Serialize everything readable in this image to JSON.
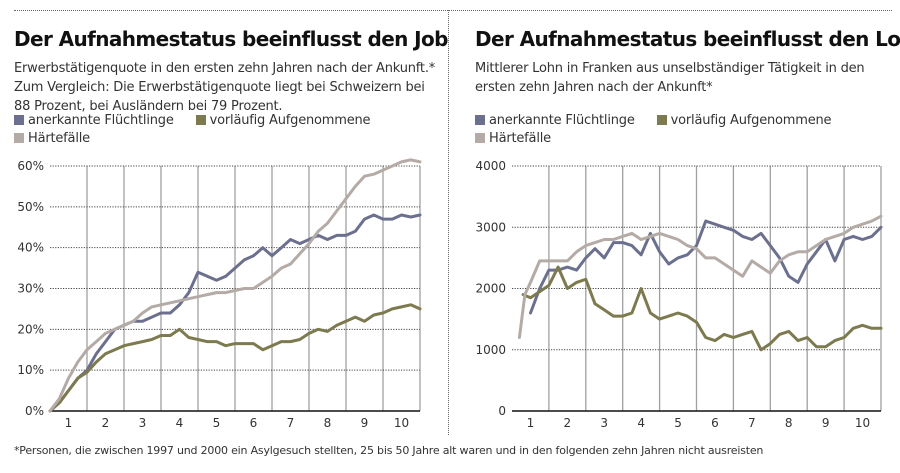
{
  "colors": {
    "anerkannt": "#6c708f",
    "vorlaeufig": "#7c7a4e",
    "haertefaelle": "#b4aba6"
  },
  "legend": [
    {
      "key": "anerkannt",
      "label": "anerkannte Flüchtlinge"
    },
    {
      "key": "vorlaeufig",
      "label": "vorläufig Aufgenommene"
    },
    {
      "key": "haertefaelle",
      "label": "Härtefälle"
    }
  ],
  "footnote": "*Personen, die zwischen 1997 und 2000 ein Asylgesuch stellten, 25 bis 50 Jahre alt waren und in den folgenden zehn Jahren nicht ausreisten",
  "chart_data": [
    {
      "type": "line",
      "title": "Der Aufnahmestatus beeinflusst den Job",
      "subtitle": "Erwerbstätigenquote in den ersten zehn Jahren nach der Ankunft.* Zum Vergleich: Die Erwerbstätigenquote liegt bei Schweizern bei 88 Prozent, bei Ausländern bei 79 Prozent.",
      "xlim": [
        0,
        10
      ],
      "ylim": [
        0,
        60
      ],
      "x_tick_labels": [
        "1",
        "2",
        "3",
        "4",
        "5",
        "6",
        "7",
        "8",
        "9",
        "10"
      ],
      "y_ticks": [
        0,
        10,
        20,
        30,
        40,
        50,
        60
      ],
      "y_tick_labels": [
        "0%",
        "10%",
        "20%",
        "30%",
        "40%",
        "50%",
        "60%"
      ],
      "grid": true,
      "legend_placement": "top",
      "series": [
        {
          "name": "anerkannte Flüchtlinge",
          "key": "anerkannt",
          "x": [
            0,
            0.25,
            0.5,
            0.75,
            1,
            1.25,
            1.5,
            1.75,
            2,
            2.25,
            2.5,
            2.75,
            3,
            3.25,
            3.5,
            3.75,
            4,
            4.25,
            4.5,
            4.75,
            5,
            5.25,
            5.5,
            5.75,
            6,
            6.25,
            6.5,
            6.75,
            7,
            7.25,
            7.5,
            7.75,
            8,
            8.25,
            8.5,
            8.75,
            9,
            9.25,
            9.5,
            9.75,
            10
          ],
          "y": [
            0,
            2,
            5,
            8,
            10,
            14,
            17,
            20,
            21,
            22,
            22,
            23,
            24,
            24,
            26,
            29,
            34,
            33,
            32,
            33,
            35,
            37,
            38,
            40,
            38,
            40,
            42,
            41,
            42,
            43,
            42,
            43,
            43,
            44,
            47,
            48,
            47,
            47,
            48,
            47.5,
            48
          ]
        },
        {
          "name": "vorläufig Aufgenommene",
          "key": "vorlaeufig",
          "x": [
            0,
            0.25,
            0.5,
            0.75,
            1,
            1.25,
            1.5,
            1.75,
            2,
            2.25,
            2.5,
            2.75,
            3,
            3.25,
            3.5,
            3.75,
            4,
            4.25,
            4.5,
            4.75,
            5,
            5.25,
            5.5,
            5.75,
            6,
            6.25,
            6.5,
            6.75,
            7,
            7.25,
            7.5,
            7.75,
            8,
            8.25,
            8.5,
            8.75,
            9,
            9.25,
            9.5,
            9.75,
            10
          ],
          "y": [
            0,
            2,
            5,
            8,
            9.5,
            12,
            14,
            15,
            16,
            16.5,
            17,
            17.5,
            18.5,
            18.5,
            20,
            18,
            17.5,
            17,
            17,
            16,
            16.5,
            16.5,
            16.5,
            15,
            16,
            17,
            17,
            17.5,
            19,
            20,
            19.5,
            21,
            22,
            23,
            22,
            23.5,
            24,
            25,
            25.5,
            26,
            25
          ]
        },
        {
          "name": "Härtefälle",
          "key": "haertefaelle",
          "x": [
            0,
            0.25,
            0.5,
            0.75,
            1,
            1.25,
            1.5,
            1.75,
            2,
            2.25,
            2.5,
            2.75,
            3,
            3.25,
            3.5,
            3.75,
            4,
            4.25,
            4.5,
            4.75,
            5,
            5.25,
            5.5,
            5.75,
            6,
            6.25,
            6.5,
            6.75,
            7,
            7.25,
            7.5,
            7.75,
            8,
            8.25,
            8.5,
            8.75,
            9,
            9.25,
            9.5,
            9.75,
            10
          ],
          "y": [
            0,
            3,
            8,
            12,
            15,
            17,
            19,
            20,
            21,
            22,
            24,
            25.5,
            26,
            26.5,
            27,
            27.5,
            28,
            28.5,
            29,
            29,
            29.5,
            30,
            30,
            31.5,
            33,
            35,
            36,
            38.5,
            41,
            44,
            46,
            49,
            52,
            55,
            57.5,
            58,
            59,
            60,
            61,
            61.5,
            61
          ]
        }
      ]
    },
    {
      "type": "line",
      "title": "Der Aufnahmestatus beeinflusst den Lohn",
      "subtitle": "Mittlerer Lohn in Franken aus unselbständiger Tätigkeit in den ersten zehn Jahren nach der Ankunft*",
      "xlim": [
        0,
        10
      ],
      "ylim": [
        0,
        4000
      ],
      "x_tick_labels": [
        "1",
        "2",
        "3",
        "4",
        "5",
        "6",
        "7",
        "8",
        "9",
        "10"
      ],
      "y_ticks": [
        0,
        1000,
        2000,
        3000,
        4000
      ],
      "y_tick_labels": [
        "0",
        "1000",
        "2000",
        "3000",
        "4000"
      ],
      "grid": true,
      "legend_placement": "top",
      "series": [
        {
          "name": "anerkannte Flüchtlinge",
          "key": "anerkannt",
          "x": [
            0.5,
            0.75,
            1,
            1.25,
            1.5,
            1.75,
            2,
            2.25,
            2.5,
            2.75,
            3,
            3.25,
            3.5,
            3.75,
            4,
            4.25,
            4.5,
            4.75,
            5,
            5.25,
            5.5,
            5.75,
            6,
            6.25,
            6.5,
            6.75,
            7,
            7.25,
            7.5,
            7.75,
            8,
            8.25,
            8.5,
            8.75,
            9,
            9.25,
            9.5,
            9.75,
            10
          ],
          "y": [
            1600,
            2000,
            2300,
            2300,
            2350,
            2300,
            2500,
            2650,
            2500,
            2750,
            2750,
            2700,
            2550,
            2900,
            2600,
            2400,
            2500,
            2550,
            2700,
            3100,
            3050,
            3000,
            2950,
            2850,
            2800,
            2900,
            2700,
            2500,
            2200,
            2100,
            2400,
            2600,
            2800,
            2450,
            2800,
            2850,
            2800,
            2850,
            3000
          ]
        },
        {
          "name": "vorläufig Aufgenommene",
          "key": "vorlaeufig",
          "x": [
            0.3,
            0.5,
            0.75,
            1,
            1.25,
            1.5,
            1.75,
            2,
            2.25,
            2.5,
            2.75,
            3,
            3.25,
            3.5,
            3.75,
            4,
            4.25,
            4.5,
            4.75,
            5,
            5.25,
            5.5,
            5.75,
            6,
            6.25,
            6.5,
            6.75,
            7,
            7.25,
            7.5,
            7.75,
            8,
            8.25,
            8.5,
            8.75,
            9,
            9.25,
            9.5,
            9.75,
            10
          ],
          "y": [
            1900,
            1850,
            1950,
            2050,
            2350,
            2000,
            2100,
            2150,
            1750,
            1650,
            1550,
            1550,
            1600,
            2000,
            1600,
            1500,
            1550,
            1600,
            1550,
            1450,
            1200,
            1150,
            1250,
            1200,
            1250,
            1300,
            1000,
            1100,
            1250,
            1300,
            1150,
            1200,
            1050,
            1050,
            1150,
            1200,
            1350,
            1400,
            1350,
            1350
          ]
        },
        {
          "name": "Härtefälle",
          "key": "haertefaelle",
          "x": [
            0.2,
            0.35,
            0.5,
            0.75,
            1,
            1.25,
            1.5,
            1.75,
            2,
            2.25,
            2.5,
            2.75,
            3,
            3.25,
            3.5,
            3.75,
            4,
            4.25,
            4.5,
            4.75,
            5,
            5.25,
            5.5,
            5.75,
            6,
            6.25,
            6.5,
            6.75,
            7,
            7.25,
            7.5,
            7.75,
            8,
            8.25,
            8.5,
            8.75,
            9,
            9.25,
            9.5,
            9.75,
            10
          ],
          "y": [
            1200,
            1900,
            2100,
            2450,
            2450,
            2450,
            2450,
            2600,
            2700,
            2750,
            2800,
            2800,
            2850,
            2900,
            2800,
            2850,
            2900,
            2850,
            2800,
            2700,
            2650,
            2500,
            2500,
            2400,
            2300,
            2200,
            2450,
            2350,
            2250,
            2450,
            2550,
            2600,
            2600,
            2700,
            2800,
            2850,
            2900,
            3000,
            3050,
            3100,
            3180
          ]
        }
      ]
    }
  ]
}
